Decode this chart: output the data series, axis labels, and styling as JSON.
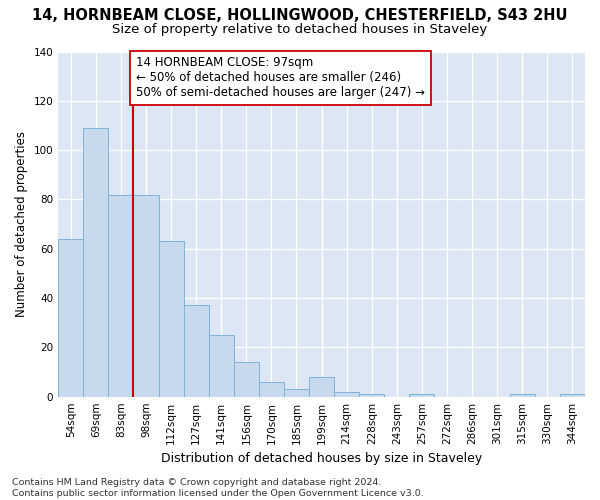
{
  "title": "14, HORNBEAM CLOSE, HOLLINGWOOD, CHESTERFIELD, S43 2HU",
  "subtitle": "Size of property relative to detached houses in Staveley",
  "xlabel": "Distribution of detached houses by size in Staveley",
  "ylabel": "Number of detached properties",
  "categories": [
    "54sqm",
    "69sqm",
    "83sqm",
    "98sqm",
    "112sqm",
    "127sqm",
    "141sqm",
    "156sqm",
    "170sqm",
    "185sqm",
    "199sqm",
    "214sqm",
    "228sqm",
    "243sqm",
    "257sqm",
    "272sqm",
    "286sqm",
    "301sqm",
    "315sqm",
    "330sqm",
    "344sqm"
  ],
  "values": [
    64,
    109,
    82,
    82,
    63,
    37,
    25,
    14,
    6,
    3,
    8,
    2,
    1,
    0,
    1,
    0,
    0,
    0,
    1,
    0,
    1
  ],
  "bar_color": "#c8d9ee",
  "bar_edge_color": "#7fb3d8",
  "vline_x": 3.0,
  "vline_color": "#cc0000",
  "annotation_text": "14 HORNBEAM CLOSE: 97sqm\n← 50% of detached houses are smaller (246)\n50% of semi-detached houses are larger (247) →",
  "annotation_box_color": "#ffffff",
  "annotation_box_edge_color": "#cc0000",
  "ylim": [
    0,
    140
  ],
  "yticks": [
    0,
    20,
    40,
    60,
    80,
    100,
    120,
    140
  ],
  "background_color": "#dce6f5",
  "grid_color": "#ffffff",
  "footnote": "Contains HM Land Registry data © Crown copyright and database right 2024.\nContains public sector information licensed under the Open Government Licence v3.0.",
  "title_fontsize": 10.5,
  "subtitle_fontsize": 9.5,
  "xlabel_fontsize": 9,
  "ylabel_fontsize": 8.5,
  "tick_fontsize": 7.5,
  "annotation_fontsize": 8.5,
  "footnote_fontsize": 6.8
}
